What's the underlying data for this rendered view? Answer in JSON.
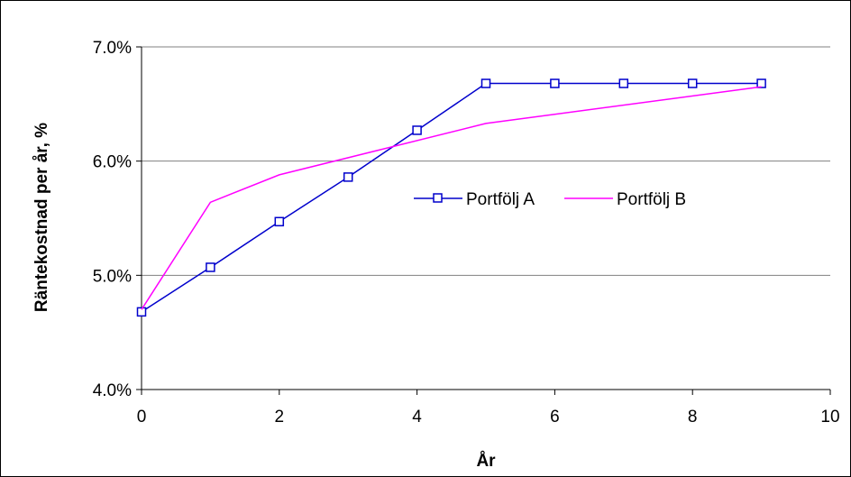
{
  "chart_data": {
    "type": "line",
    "title": "",
    "xlabel": "År",
    "ylabel": "Räntekostnad per år, %",
    "xlim": [
      0,
      10
    ],
    "ylim": [
      0.04,
      0.07
    ],
    "x_ticks": [
      0,
      2,
      4,
      6,
      8,
      10
    ],
    "x_tick_labels": [
      "0",
      "2",
      "4",
      "6",
      "8",
      "10"
    ],
    "y_ticks": [
      0.04,
      0.05,
      0.06,
      0.07
    ],
    "y_tick_labels": [
      "4.0%",
      "5.0%",
      "6.0%",
      "7.0%"
    ],
    "grid": "horizontal",
    "legend_position": "center-right",
    "series": [
      {
        "name": "Portfölj A",
        "color": "#0000cc",
        "marker": "square",
        "x": [
          0,
          1,
          2,
          3,
          4,
          5,
          6,
          7,
          8,
          9
        ],
        "y": [
          0.0468,
          0.0507,
          0.0547,
          0.0586,
          0.0627,
          0.0668,
          0.0668,
          0.0668,
          0.0668,
          0.0668
        ]
      },
      {
        "name": "Portfölj B",
        "color": "#ff00ff",
        "marker": "none",
        "x": [
          0,
          1,
          2,
          5,
          9
        ],
        "y": [
          0.047,
          0.0564,
          0.0588,
          0.0633,
          0.0665
        ]
      }
    ]
  }
}
